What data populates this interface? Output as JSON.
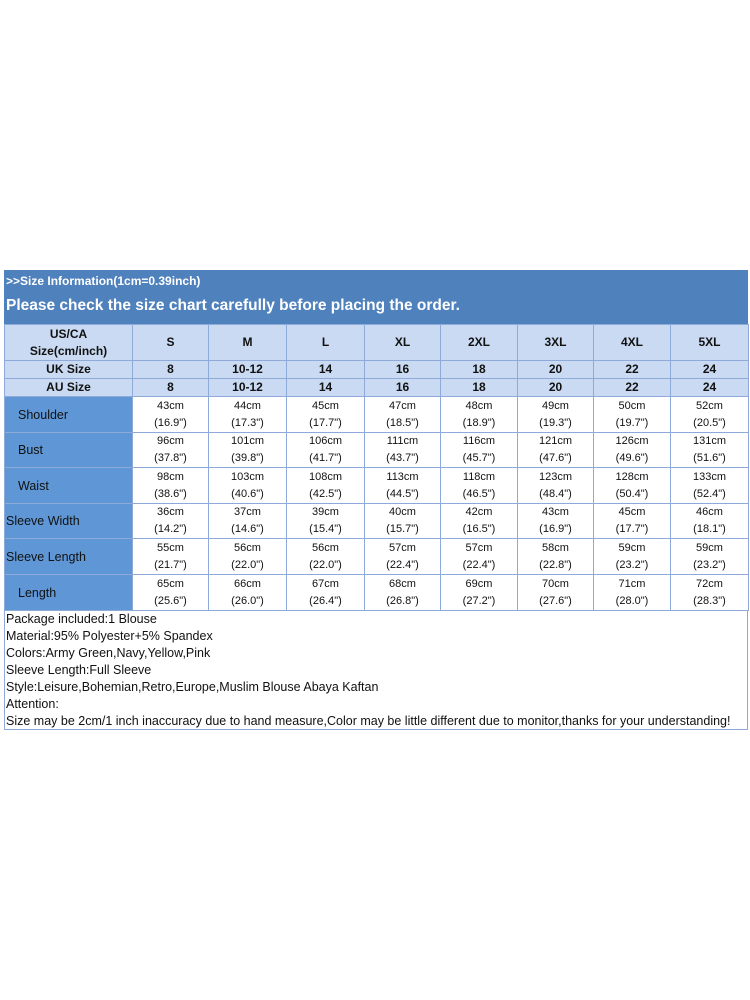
{
  "header": {
    "line1": ">>Size Information(1cm=0.39inch)",
    "line2": "Please check the size chart carefully before placing the order."
  },
  "table": {
    "corner": [
      "US/CA",
      "Size(cm/inch)"
    ],
    "sizes": [
      "S",
      "M",
      "L",
      "XL",
      "2XL",
      "3XL",
      "4XL",
      "5XL"
    ],
    "uk": {
      "label": "UK Size",
      "values": [
        "8",
        "10-12",
        "14",
        "16",
        "18",
        "20",
        "22",
        "24"
      ]
    },
    "au": {
      "label": "AU Size",
      "values": [
        "8",
        "10-12",
        "14",
        "16",
        "18",
        "20",
        "22",
        "24"
      ]
    },
    "rows": [
      {
        "label": "Shoulder",
        "cm": [
          "43cm",
          "44cm",
          "45cm",
          "47cm",
          "48cm",
          "49cm",
          "50cm",
          "52cm"
        ],
        "inch": [
          "(16.9\")",
          "(17.3\")",
          "(17.7\")",
          "(18.5\")",
          "(18.9\")",
          "(19.3\")",
          "(19.7\")",
          "(20.5\")"
        ]
      },
      {
        "label": "Bust",
        "cm": [
          "96cm",
          "101cm",
          "106cm",
          "111cm",
          "116cm",
          "121cm",
          "126cm",
          "131cm"
        ],
        "inch": [
          "(37.8\")",
          "(39.8\")",
          "(41.7\")",
          "(43.7\")",
          "(45.7\")",
          "(47.6\")",
          "(49.6\")",
          "(51.6\")"
        ]
      },
      {
        "label": "Waist",
        "cm": [
          "98cm",
          "103cm",
          "108cm",
          "113cm",
          "118cm",
          "123cm",
          "128cm",
          "133cm"
        ],
        "inch": [
          "(38.6\")",
          "(40.6\")",
          "(42.5\")",
          "(44.5\")",
          "(46.5\")",
          "(48.4\")",
          "(50.4\")",
          "(52.4\")"
        ]
      },
      {
        "label": "Sleeve Width",
        "cm": [
          "36cm",
          "37cm",
          "39cm",
          "40cm",
          "42cm",
          "43cm",
          "45cm",
          "46cm"
        ],
        "inch": [
          "(14.2\")",
          "(14.6\")",
          "(15.4\")",
          "(15.7\")",
          "(16.5\")",
          "(16.9\")",
          "(17.7\")",
          "(18.1\")"
        ]
      },
      {
        "label": "Sleeve Length",
        "cm": [
          "55cm",
          "56cm",
          "56cm",
          "57cm",
          "57cm",
          "58cm",
          "59cm",
          "59cm"
        ],
        "inch": [
          "(21.7\")",
          "(22.0\")",
          "(22.0\")",
          "(22.4\")",
          "(22.4\")",
          "(22.8\")",
          "(23.2\")",
          "(23.2\")"
        ]
      },
      {
        "label": "Length",
        "cm": [
          "65cm",
          "66cm",
          "67cm",
          "68cm",
          "69cm",
          "70cm",
          "71cm",
          "72cm"
        ],
        "inch": [
          "(25.6\")",
          "(26.0\")",
          "(26.4\")",
          "(26.8\")",
          "(27.2\")",
          "(27.6\")",
          "(28.0\")",
          "(28.3\")"
        ]
      }
    ]
  },
  "notes": [
    "Package included:1 Blouse",
    "Material:95% Polyester+5% Spandex",
    "Colors:Army Green,Navy,Yellow,Pink",
    "Sleeve Length:Full Sleeve",
    "Style:Leisure,Bohemian,Retro,Europe,Muslim Blouse Abaya Kaftan",
    "Attention:",
    "Size may be 2cm/1 inch inaccuracy due to hand measure,Color may be little different due to monitor,thanks for your understanding!"
  ]
}
